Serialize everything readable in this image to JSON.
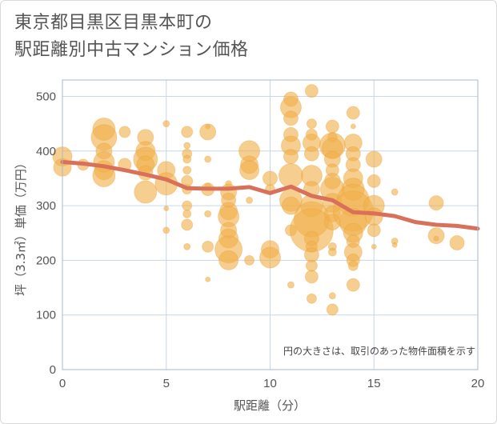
{
  "title": "東京都目黒区目黒本町の\n駅距離別中古マンション価格",
  "chart_data": {
    "type": "scatter",
    "xlabel": "駅距離（分）",
    "ylabel": "坪（3.3㎡）単価（万円）",
    "note": "円の大きさは、取引のあった物件面積を示す",
    "xlim": [
      0,
      20
    ],
    "ylim": [
      0,
      530
    ],
    "xticks": [
      0,
      5,
      10,
      15,
      20
    ],
    "yticks": [
      0,
      100,
      200,
      300,
      400,
      500
    ],
    "grid": true,
    "colors": {
      "bubble": "#f0b04a",
      "line": "#d9705a",
      "grid": "#c9d6e6"
    },
    "trend_line": {
      "x": [
        0,
        1,
        2,
        3,
        4,
        5,
        6,
        7,
        8,
        9,
        10,
        11,
        12,
        13,
        14,
        15,
        16,
        17,
        18,
        19,
        20
      ],
      "y": [
        380,
        377,
        372,
        365,
        357,
        348,
        332,
        331,
        331,
        334,
        323,
        335,
        318,
        310,
        288,
        286,
        281,
        270,
        265,
        263,
        258
      ]
    },
    "bubbles": [
      {
        "x": 0,
        "y": 390,
        "s": 12
      },
      {
        "x": 0,
        "y": 370,
        "s": 11
      },
      {
        "x": 1,
        "y": 375,
        "s": 7
      },
      {
        "x": 2,
        "y": 440,
        "s": 14
      },
      {
        "x": 2,
        "y": 425,
        "s": 16
      },
      {
        "x": 2,
        "y": 400,
        "s": 10
      },
      {
        "x": 2,
        "y": 380,
        "s": 13
      },
      {
        "x": 2,
        "y": 365,
        "s": 12
      },
      {
        "x": 2,
        "y": 355,
        "s": 14
      },
      {
        "x": 3,
        "y": 435,
        "s": 7
      },
      {
        "x": 3,
        "y": 375,
        "s": 8
      },
      {
        "x": 4,
        "y": 425,
        "s": 10
      },
      {
        "x": 4,
        "y": 400,
        "s": 12
      },
      {
        "x": 4,
        "y": 385,
        "s": 15
      },
      {
        "x": 4,
        "y": 375,
        "s": 11
      },
      {
        "x": 4,
        "y": 360,
        "s": 9
      },
      {
        "x": 4,
        "y": 325,
        "s": 14
      },
      {
        "x": 5,
        "y": 450,
        "s": 4
      },
      {
        "x": 5,
        "y": 365,
        "s": 11
      },
      {
        "x": 5,
        "y": 340,
        "s": 14
      },
      {
        "x": 5,
        "y": 295,
        "s": 3
      },
      {
        "x": 5,
        "y": 255,
        "s": 4
      },
      {
        "x": 6,
        "y": 435,
        "s": 7
      },
      {
        "x": 6,
        "y": 410,
        "s": 4
      },
      {
        "x": 6,
        "y": 395,
        "s": 6
      },
      {
        "x": 6,
        "y": 385,
        "s": 5
      },
      {
        "x": 6,
        "y": 365,
        "s": 5
      },
      {
        "x": 6,
        "y": 345,
        "s": 7
      },
      {
        "x": 6,
        "y": 330,
        "s": 6
      },
      {
        "x": 6,
        "y": 300,
        "s": 6
      },
      {
        "x": 6,
        "y": 285,
        "s": 5
      },
      {
        "x": 6,
        "y": 265,
        "s": 7
      },
      {
        "x": 6,
        "y": 225,
        "s": 4
      },
      {
        "x": 7,
        "y": 445,
        "s": 3
      },
      {
        "x": 7,
        "y": 435,
        "s": 10
      },
      {
        "x": 7,
        "y": 385,
        "s": 4
      },
      {
        "x": 7,
        "y": 335,
        "s": 4
      },
      {
        "x": 7,
        "y": 330,
        "s": 8
      },
      {
        "x": 7,
        "y": 285,
        "s": 4
      },
      {
        "x": 7,
        "y": 225,
        "s": 7
      },
      {
        "x": 7,
        "y": 165,
        "s": 3
      },
      {
        "x": 8,
        "y": 340,
        "s": 4
      },
      {
        "x": 8,
        "y": 325,
        "s": 10
      },
      {
        "x": 8,
        "y": 310,
        "s": 9
      },
      {
        "x": 8,
        "y": 290,
        "s": 11
      },
      {
        "x": 8,
        "y": 280,
        "s": 13
      },
      {
        "x": 8,
        "y": 255,
        "s": 10
      },
      {
        "x": 8,
        "y": 240,
        "s": 12
      },
      {
        "x": 8,
        "y": 220,
        "s": 17
      },
      {
        "x": 8,
        "y": 200,
        "s": 12
      },
      {
        "x": 9,
        "y": 400,
        "s": 13
      },
      {
        "x": 9,
        "y": 375,
        "s": 11
      },
      {
        "x": 9,
        "y": 365,
        "s": 12
      },
      {
        "x": 9,
        "y": 310,
        "s": 4
      },
      {
        "x": 9,
        "y": 200,
        "s": 6
      },
      {
        "x": 10,
        "y": 350,
        "s": 9
      },
      {
        "x": 10,
        "y": 330,
        "s": 6
      },
      {
        "x": 10,
        "y": 220,
        "s": 11
      },
      {
        "x": 10,
        "y": 205,
        "s": 13
      },
      {
        "x": 11,
        "y": 495,
        "s": 9
      },
      {
        "x": 11,
        "y": 480,
        "s": 13
      },
      {
        "x": 11,
        "y": 460,
        "s": 9
      },
      {
        "x": 11,
        "y": 430,
        "s": 9
      },
      {
        "x": 11,
        "y": 410,
        "s": 12
      },
      {
        "x": 11,
        "y": 390,
        "s": 9
      },
      {
        "x": 11,
        "y": 355,
        "s": 15
      },
      {
        "x": 11,
        "y": 310,
        "s": 14
      },
      {
        "x": 11,
        "y": 300,
        "s": 11
      },
      {
        "x": 11,
        "y": 255,
        "s": 7
      },
      {
        "x": 11,
        "y": 155,
        "s": 4
      },
      {
        "x": 12,
        "y": 510,
        "s": 8
      },
      {
        "x": 12,
        "y": 450,
        "s": 6
      },
      {
        "x": 12,
        "y": 430,
        "s": 7
      },
      {
        "x": 12,
        "y": 415,
        "s": 11
      },
      {
        "x": 12,
        "y": 395,
        "s": 9
      },
      {
        "x": 12,
        "y": 355,
        "s": 13
      },
      {
        "x": 12,
        "y": 330,
        "s": 10
      },
      {
        "x": 12,
        "y": 300,
        "s": 14
      },
      {
        "x": 12,
        "y": 275,
        "s": 22
      },
      {
        "x": 12,
        "y": 255,
        "s": 27
      },
      {
        "x": 12,
        "y": 240,
        "s": 9
      },
      {
        "x": 12,
        "y": 225,
        "s": 7
      },
      {
        "x": 12,
        "y": 210,
        "s": 9
      },
      {
        "x": 12,
        "y": 190,
        "s": 7
      },
      {
        "x": 12,
        "y": 170,
        "s": 8
      },
      {
        "x": 12,
        "y": 130,
        "s": 6
      },
      {
        "x": 13,
        "y": 445,
        "s": 8
      },
      {
        "x": 13,
        "y": 425,
        "s": 6
      },
      {
        "x": 13,
        "y": 410,
        "s": 16
      },
      {
        "x": 13,
        "y": 405,
        "s": 13
      },
      {
        "x": 13,
        "y": 385,
        "s": 10
      },
      {
        "x": 13,
        "y": 365,
        "s": 8
      },
      {
        "x": 13,
        "y": 345,
        "s": 10
      },
      {
        "x": 13,
        "y": 330,
        "s": 15
      },
      {
        "x": 13,
        "y": 305,
        "s": 12
      },
      {
        "x": 13,
        "y": 285,
        "s": 10
      },
      {
        "x": 13,
        "y": 270,
        "s": 10
      },
      {
        "x": 13,
        "y": 225,
        "s": 5
      },
      {
        "x": 13,
        "y": 215,
        "s": 5
      },
      {
        "x": 13,
        "y": 135,
        "s": 4
      },
      {
        "x": 13,
        "y": 110,
        "s": 7
      },
      {
        "x": 14,
        "y": 470,
        "s": 8
      },
      {
        "x": 14,
        "y": 445,
        "s": 3
      },
      {
        "x": 14,
        "y": 415,
        "s": 11
      },
      {
        "x": 14,
        "y": 395,
        "s": 9
      },
      {
        "x": 14,
        "y": 375,
        "s": 9
      },
      {
        "x": 14,
        "y": 350,
        "s": 12
      },
      {
        "x": 14,
        "y": 330,
        "s": 14
      },
      {
        "x": 14,
        "y": 310,
        "s": 20
      },
      {
        "x": 14,
        "y": 290,
        "s": 25
      },
      {
        "x": 14,
        "y": 270,
        "s": 17
      },
      {
        "x": 14,
        "y": 250,
        "s": 12
      },
      {
        "x": 14,
        "y": 235,
        "s": 8
      },
      {
        "x": 14,
        "y": 215,
        "s": 11
      },
      {
        "x": 14,
        "y": 200,
        "s": 8
      },
      {
        "x": 14,
        "y": 190,
        "s": 6
      },
      {
        "x": 14,
        "y": 155,
        "s": 8
      },
      {
        "x": 15,
        "y": 385,
        "s": 10
      },
      {
        "x": 15,
        "y": 345,
        "s": 8
      },
      {
        "x": 15,
        "y": 300,
        "s": 13
      },
      {
        "x": 15,
        "y": 280,
        "s": 11
      },
      {
        "x": 15,
        "y": 255,
        "s": 8
      },
      {
        "x": 15,
        "y": 225,
        "s": 3
      },
      {
        "x": 16,
        "y": 325,
        "s": 4
      },
      {
        "x": 16,
        "y": 235,
        "s": 4
      },
      {
        "x": 16,
        "y": 228,
        "s": 3
      },
      {
        "x": 18,
        "y": 305,
        "s": 9
      },
      {
        "x": 18,
        "y": 245,
        "s": 10
      },
      {
        "x": 18,
        "y": 240,
        "s": 3
      },
      {
        "x": 19,
        "y": 232,
        "s": 9
      }
    ]
  }
}
